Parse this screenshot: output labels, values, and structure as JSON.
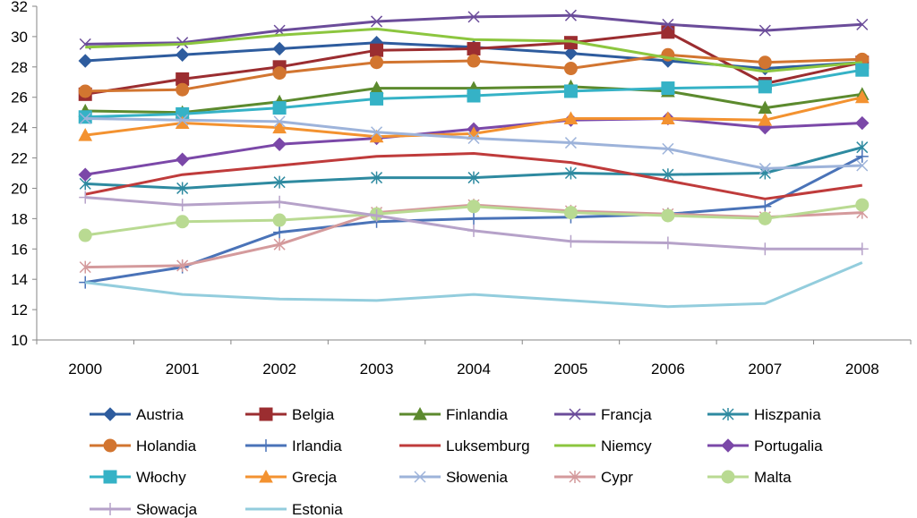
{
  "chart_data": {
    "type": "line",
    "title": "",
    "xlabel": "",
    "ylabel": "",
    "x": [
      "2000",
      "2001",
      "2002",
      "2003",
      "2004",
      "2005",
      "2006",
      "2007",
      "2008"
    ],
    "ylim": [
      10,
      32
    ],
    "yticks": [
      10,
      12,
      14,
      16,
      18,
      20,
      22,
      24,
      26,
      28,
      30,
      32
    ],
    "grid": false,
    "legend_position": "bottom",
    "series": [
      {
        "name": "Austria",
        "color": "#2E5C9E",
        "marker": "diamond",
        "values": [
          28.4,
          28.8,
          29.2,
          29.6,
          29.3,
          28.9,
          28.4,
          27.9,
          28.3
        ]
      },
      {
        "name": "Belgia",
        "color": "#9B2D30",
        "marker": "square",
        "values": [
          26.2,
          27.2,
          28.0,
          29.1,
          29.2,
          29.6,
          30.3,
          26.9,
          28.3
        ]
      },
      {
        "name": "Finlandia",
        "color": "#5C8A2E",
        "marker": "triangle",
        "values": [
          25.1,
          25.0,
          25.7,
          26.6,
          26.6,
          26.7,
          26.4,
          25.3,
          26.2
        ]
      },
      {
        "name": "Francja",
        "color": "#6B4C9A",
        "marker": "x",
        "values": [
          29.5,
          29.6,
          30.4,
          31.0,
          31.3,
          31.4,
          30.8,
          30.4,
          30.8
        ]
      },
      {
        "name": "Hiszpania",
        "color": "#2E8AA0",
        "marker": "star",
        "values": [
          20.3,
          20.0,
          20.4,
          20.7,
          20.7,
          21.0,
          20.9,
          21.0,
          22.7
        ]
      },
      {
        "name": "Holandia",
        "color": "#D27530",
        "marker": "circle",
        "values": [
          26.4,
          26.5,
          27.6,
          28.3,
          28.4,
          27.9,
          28.8,
          28.3,
          28.5
        ]
      },
      {
        "name": "Irlandia",
        "color": "#4A73B8",
        "marker": "plus",
        "values": [
          13.8,
          14.8,
          17.1,
          17.8,
          18.0,
          18.1,
          18.3,
          18.8,
          22.1
        ]
      },
      {
        "name": "Luksemburg",
        "color": "#BF3B3B",
        "marker": "none",
        "values": [
          19.6,
          20.9,
          21.5,
          22.1,
          22.3,
          21.7,
          20.5,
          19.3,
          20.2
        ]
      },
      {
        "name": "Niemcy",
        "color": "#8CC63F",
        "marker": "none",
        "values": [
          29.3,
          29.5,
          30.1,
          30.5,
          29.8,
          29.7,
          28.6,
          27.7,
          28.3
        ]
      },
      {
        "name": "Portugalia",
        "color": "#7B48A8",
        "marker": "diamond",
        "values": [
          20.9,
          21.9,
          22.9,
          23.3,
          23.9,
          24.5,
          24.6,
          24.0,
          24.3
        ]
      },
      {
        "name": "Włochy",
        "color": "#35B2C6",
        "marker": "square",
        "values": [
          24.7,
          24.9,
          25.3,
          25.9,
          26.1,
          26.4,
          26.6,
          26.7,
          27.8
        ]
      },
      {
        "name": "Grecja",
        "color": "#F39230",
        "marker": "triangle",
        "values": [
          23.5,
          24.3,
          24.0,
          23.4,
          23.6,
          24.6,
          24.6,
          24.5,
          26.0
        ]
      },
      {
        "name": "Słowenia",
        "color": "#9DB3DA",
        "marker": "x",
        "values": [
          24.6,
          24.5,
          24.4,
          23.7,
          23.3,
          23.0,
          22.6,
          21.3,
          21.5
        ]
      },
      {
        "name": "Cypr",
        "color": "#D49A9C",
        "marker": "star",
        "values": [
          14.8,
          14.9,
          16.3,
          18.4,
          18.9,
          18.5,
          18.3,
          18.1,
          18.4
        ]
      },
      {
        "name": "Malta",
        "color": "#B9DA92",
        "marker": "circle",
        "values": [
          16.9,
          17.8,
          17.9,
          18.3,
          18.8,
          18.4,
          18.2,
          18.0,
          18.9
        ]
      },
      {
        "name": "Słowacja",
        "color": "#B6A2C9",
        "marker": "plus",
        "values": [
          19.4,
          18.9,
          19.1,
          18.2,
          17.2,
          16.5,
          16.4,
          16.0,
          16.0
        ]
      },
      {
        "name": "Estonia",
        "color": "#93CDDD",
        "marker": "none",
        "values": [
          13.8,
          13.0,
          12.7,
          12.6,
          13.0,
          12.6,
          12.2,
          12.4,
          15.1
        ]
      }
    ]
  }
}
